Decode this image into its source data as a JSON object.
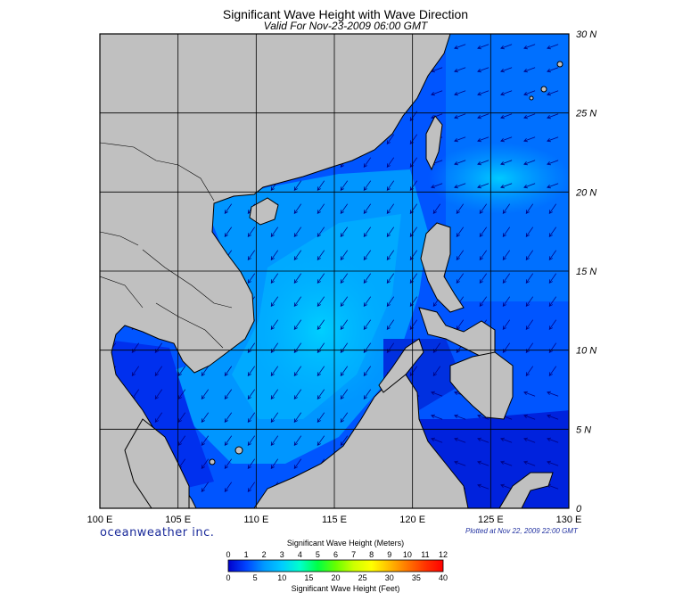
{
  "header": {
    "title": "Significant Wave Height with Wave Direction",
    "subtitle": "Valid For Nov-23-2009 06:00 GMT"
  },
  "map": {
    "lon_labels": [
      "100 E",
      "105 E",
      "110 E",
      "115 E",
      "120 E",
      "125 E",
      "130 E"
    ],
    "lat_labels": [
      "30 N",
      "25 N",
      "20 N",
      "15 N",
      "10 N",
      "5 N",
      "0"
    ],
    "colors": {
      "land": "#c0c0c0",
      "deep_blue": "#0000dd",
      "mid_blue": "#0050ff",
      "light_blue": "#0099ff",
      "cyan": "#00c8ff",
      "grid": "#000000"
    }
  },
  "footer": {
    "brand": "oceanweather inc.",
    "plotted": "Plotted at Nov 22, 2009 22:00 GMT"
  },
  "colorbar": {
    "meters_title": "Significant Wave Height (Meters)",
    "meters_ticks": [
      "0",
      "1",
      "2",
      "3",
      "4",
      "5",
      "6",
      "7",
      "8",
      "9",
      "10",
      "11",
      "12"
    ],
    "feet_title": "Significant Wave Height (Feet)",
    "feet_ticks": [
      "0",
      "5",
      "10",
      "15",
      "20",
      "25",
      "30",
      "35",
      "40"
    ],
    "gradient": [
      "#0000cc",
      "#0044ff",
      "#0099ff",
      "#00ccff",
      "#00ffcc",
      "#00ff44",
      "#66ff00",
      "#ccff00",
      "#ffff00",
      "#ffbb00",
      "#ff7700",
      "#ff3300",
      "#ff0000"
    ]
  }
}
